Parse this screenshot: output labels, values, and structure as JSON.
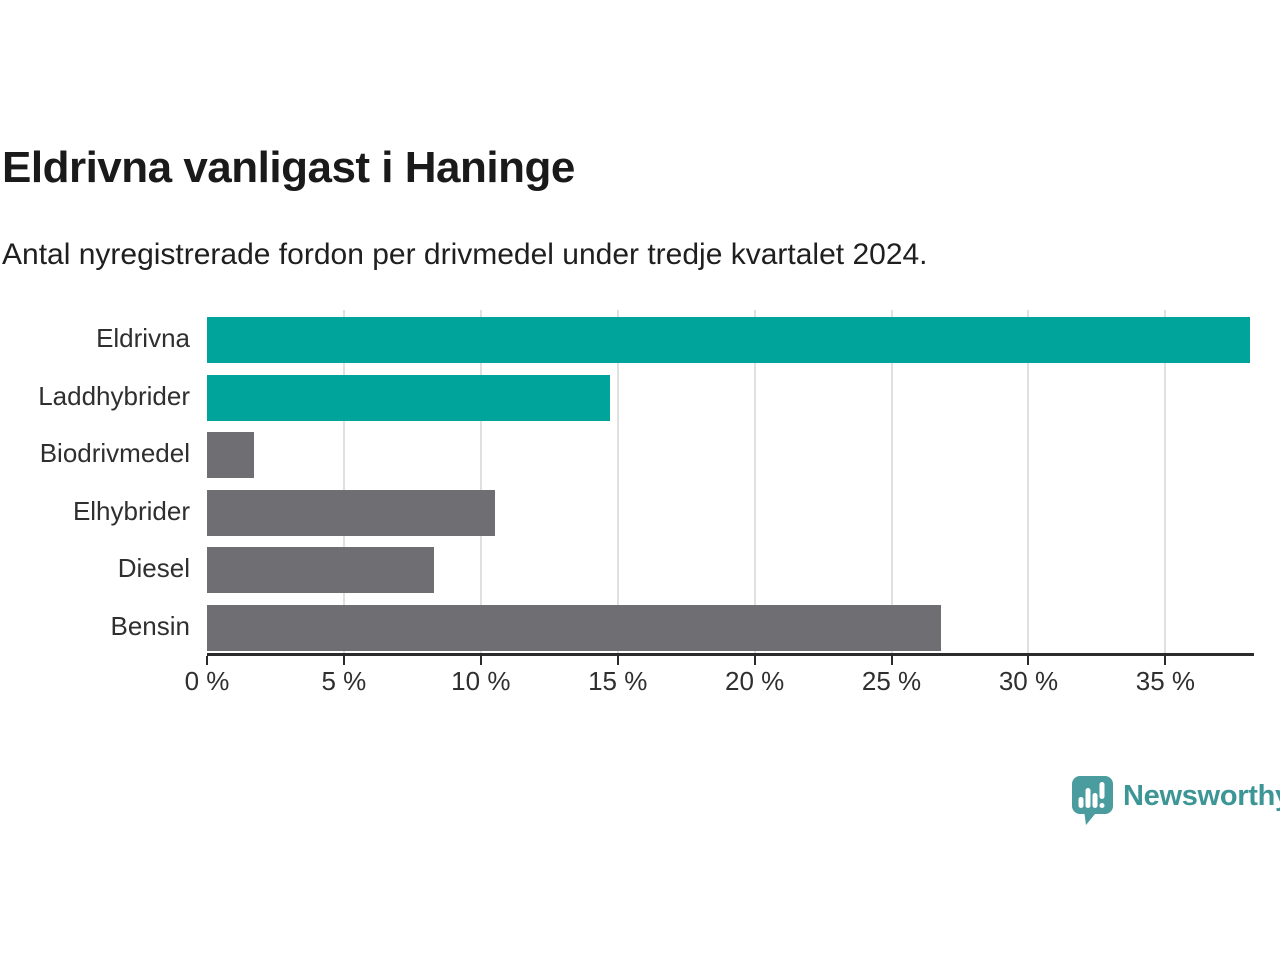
{
  "header": {
    "title": "Eldrivna vanligast i Haninge",
    "subtitle": "Antal nyregistrerade fordon per drivmedel under tredje kvartalet 2024."
  },
  "chart_data": {
    "type": "bar",
    "orientation": "horizontal",
    "title": "Eldrivna vanligast i Haninge",
    "subtitle": "Antal nyregistrerade fordon per drivmedel under tredje kvartalet 2024.",
    "categories": [
      "Eldrivna",
      "Laddhybrider",
      "Biodrivmedel",
      "Elhybrider",
      "Diesel",
      "Bensin"
    ],
    "values": [
      38.1,
      14.7,
      1.7,
      10.5,
      8.3,
      26.8
    ],
    "bar_colors": [
      "#00A49B",
      "#00A49B",
      "#6E6E73",
      "#6E6E73",
      "#6E6E73",
      "#6E6E73"
    ],
    "highlight_color": "#00A49B",
    "default_color": "#6E6E73",
    "xlim": [
      0,
      38.2
    ],
    "x_ticks": [
      0,
      5,
      10,
      15,
      20,
      25,
      30,
      35
    ],
    "x_tick_labels": [
      "0 %",
      "5 %",
      "10 %",
      "15 %",
      "20 %",
      "25 %",
      "30 %",
      "35 %"
    ],
    "grid": "vertical",
    "gridline_color": "#e0e0e0",
    "legend": "none"
  },
  "footer": {
    "brand": "Newsworthy",
    "brand_color": "#3D9596",
    "icon_color": "#4A9C9E",
    "icon": "bar-chart-speech-bubble-icon"
  }
}
